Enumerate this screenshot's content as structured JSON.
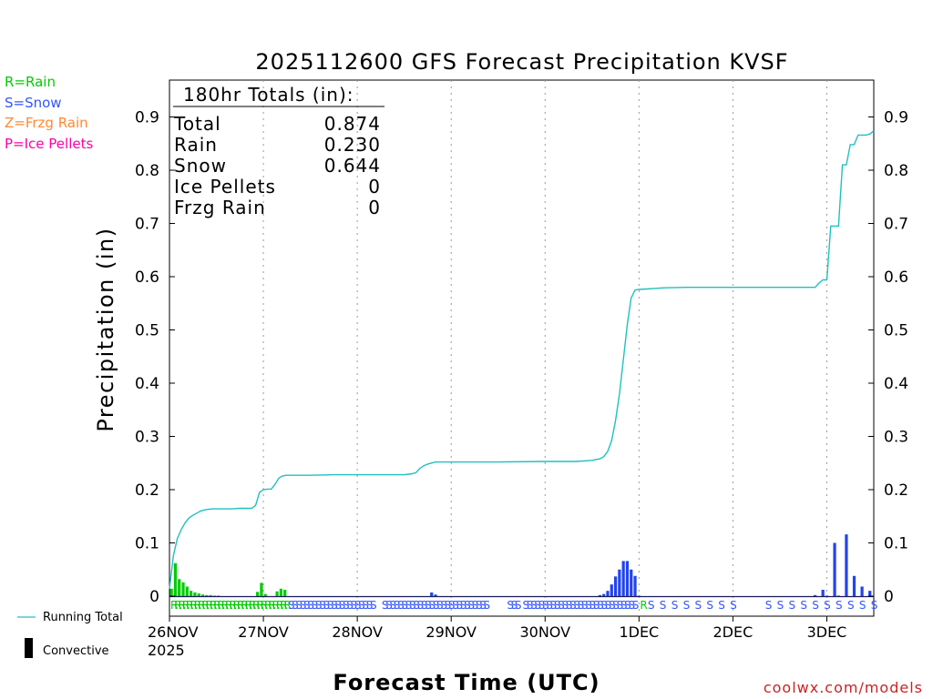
{
  "chart_data": {
    "type": "bar",
    "title": "2025112600 GFS Forecast Precipitation KVSF",
    "xlabel": "Forecast Time (UTC)",
    "ylabel": "Precipitation (in)",
    "ylim": [
      0,
      0.95
    ],
    "y_ticks": [
      0,
      0.1,
      0.2,
      0.3,
      0.4,
      0.5,
      0.6,
      0.7,
      0.8,
      0.9
    ],
    "y_tick_labels": [
      "0",
      "0.1",
      "0.2",
      "0.3",
      "0.4",
      "0.5",
      "0.6",
      "0.7",
      "0.8",
      "0.9"
    ],
    "x_range_hours": [
      0,
      180
    ],
    "x_ticks": [
      {
        "hour": 0,
        "label": "26NOV",
        "sublabel": "2025"
      },
      {
        "hour": 24,
        "label": "27NOV"
      },
      {
        "hour": 48,
        "label": "28NOV"
      },
      {
        "hour": 72,
        "label": "29NOV"
      },
      {
        "hour": 96,
        "label": "30NOV"
      },
      {
        "hour": 120,
        "label": "1DEC"
      },
      {
        "hour": 144,
        "label": "2DEC"
      },
      {
        "hour": 168,
        "label": "3DEC"
      }
    ],
    "grid": "vertical-dotted",
    "type_legend": [
      {
        "code": "R",
        "text": "R=Rain",
        "color": "#00cc00"
      },
      {
        "code": "S",
        "text": "S=Snow",
        "color": "#3355ff"
      },
      {
        "code": "Z",
        "text": "Z=Frzg Rain",
        "color": "#ff8833"
      },
      {
        "code": "P",
        "text": "P=Ice Pellets",
        "color": "#ff00aa"
      }
    ],
    "bottom_legend": {
      "running_total": "Running Total",
      "convective": "Convective",
      "running_total_color": "#20c0c0"
    },
    "totals": {
      "heading": "180hr Totals (in):",
      "rows": [
        {
          "label": "Total",
          "value": "0.874"
        },
        {
          "label": "Rain",
          "value": "0.230"
        },
        {
          "label": "Snow",
          "value": "0.644"
        },
        {
          "label": "Ice Pellets",
          "value": "0"
        },
        {
          "label": "Frzg Rain",
          "value": "0"
        }
      ]
    },
    "series": [
      {
        "name": "Rain",
        "color": "#00cc00",
        "x_hours": [
          0.5,
          1.5,
          2.5,
          3.5,
          4.5,
          5.5,
          6.5,
          7.5,
          8.5,
          9.5,
          10.5,
          11.5,
          12.5,
          22.5,
          23.5,
          24.5,
          27.5,
          28.5,
          29.5
        ],
        "values": [
          0.014,
          0.062,
          0.032,
          0.026,
          0.018,
          0.01,
          0.007,
          0.005,
          0.003,
          0.002,
          0.002,
          0.001,
          0.001,
          0.008,
          0.025,
          0.004,
          0.009,
          0.014,
          0.012
        ]
      },
      {
        "name": "Snow",
        "color": "#2244ee",
        "x_hours": [
          67,
          68,
          110,
          111,
          112,
          113,
          114,
          115,
          116,
          117,
          118,
          119,
          120,
          165,
          167,
          168,
          170,
          171,
          173,
          175,
          177,
          179
        ],
        "values": [
          0.007,
          0.003,
          0.002,
          0.004,
          0.01,
          0.022,
          0.037,
          0.05,
          0.066,
          0.066,
          0.05,
          0.038,
          0.001,
          0.002,
          0.012,
          0.001,
          0.1,
          0.001,
          0.116,
          0.038,
          0.018,
          0.01
        ]
      },
      {
        "name": "Running Total",
        "color": "#20c0c0",
        "x_hours": [
          0,
          1,
          2,
          3,
          4,
          5,
          6,
          7,
          8,
          9,
          10,
          11,
          12,
          14,
          16,
          18,
          20,
          21,
          22,
          23,
          24,
          25,
          26,
          27,
          28,
          29,
          30,
          36,
          42,
          48,
          54,
          60,
          62,
          63,
          64,
          65,
          66,
          68,
          72,
          84,
          96,
          104,
          108,
          110,
          111,
          112,
          113,
          114,
          115,
          116,
          117,
          118,
          119,
          120,
          122,
          124,
          126,
          132,
          144,
          160,
          165,
          166,
          167,
          168,
          169,
          170,
          171,
          172,
          173,
          174,
          175,
          176,
          177,
          178,
          179,
          180
        ],
        "values": [
          0.014,
          0.076,
          0.108,
          0.125,
          0.138,
          0.147,
          0.152,
          0.156,
          0.16,
          0.162,
          0.163,
          0.164,
          0.164,
          0.164,
          0.164,
          0.165,
          0.165,
          0.165,
          0.17,
          0.195,
          0.2,
          0.201,
          0.201,
          0.21,
          0.222,
          0.226,
          0.227,
          0.227,
          0.228,
          0.228,
          0.228,
          0.228,
          0.23,
          0.232,
          0.24,
          0.245,
          0.248,
          0.252,
          0.252,
          0.252,
          0.253,
          0.253,
          0.255,
          0.258,
          0.262,
          0.272,
          0.292,
          0.33,
          0.38,
          0.445,
          0.51,
          0.56,
          0.575,
          0.576,
          0.577,
          0.578,
          0.579,
          0.58,
          0.58,
          0.58,
          0.58,
          0.588,
          0.594,
          0.594,
          0.695,
          0.695,
          0.695,
          0.81,
          0.81,
          0.848,
          0.848,
          0.866,
          0.866,
          0.866,
          0.868,
          0.874
        ]
      }
    ],
    "type_strip": [
      {
        "from": 0,
        "to": 25,
        "code": "R"
      },
      {
        "from": 25,
        "to": 30,
        "code": "R"
      },
      {
        "from": 30,
        "to": 50,
        "code": "S"
      },
      {
        "from": 50,
        "to": 52,
        "code": "S"
      },
      {
        "from": 54,
        "to": 81,
        "code": "S"
      },
      {
        "from": 86,
        "to": 89,
        "code": "S"
      },
      {
        "from": 90,
        "to": 119,
        "code": "S"
      },
      {
        "from": 120,
        "to": 121,
        "code": "R"
      },
      {
        "from": 122,
        "to": 145,
        "code": "S",
        "spacing": 3
      },
      {
        "from": 152,
        "to": 181,
        "code": "S",
        "spacing": 3
      }
    ]
  },
  "footer": {
    "credit": "coolwx.com/models",
    "credit_color": "#cc2222"
  }
}
